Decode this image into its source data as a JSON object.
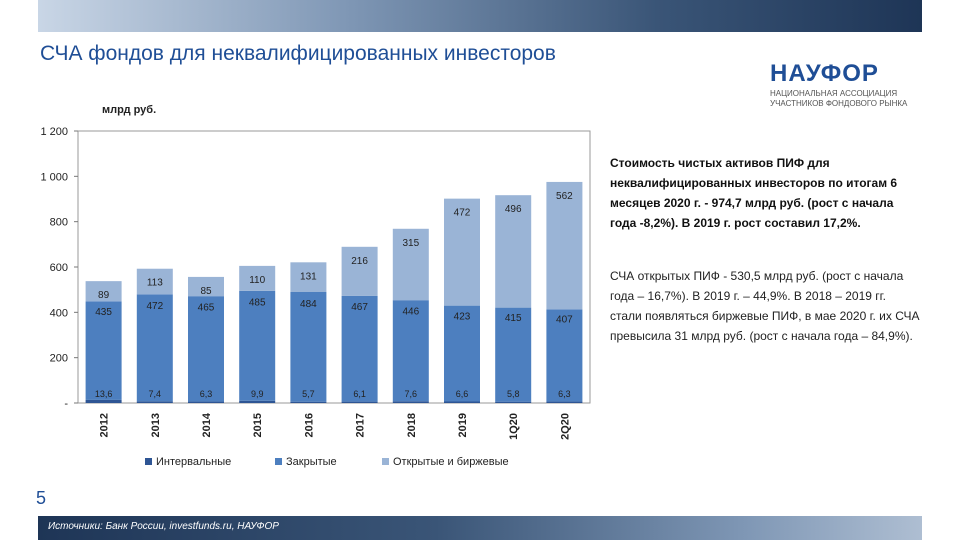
{
  "title": "СЧА фондов для неквалифицированных инвесторов",
  "logo": {
    "name": "НАУФОР",
    "line1": "НАЦИОНАЛЬНАЯ АССОЦИАЦИЯ",
    "line2": "УЧАСТНИКОВ ФОНДОВОГО РЫНКА"
  },
  "note_bold": "Стоимость чистых активов ПИФ для неквалифицированных инвесторов по итогам 6 месяцев 2020 г. - 974,7 млрд руб. (рост с начала года -8,2%). В 2019 г. рост составил 17,2%.",
  "note_regular": "СЧА открытых ПИФ - 530,5 млрд руб. (рост с начала года – 16,7%). В 2019 г. – 44,9%. В 2018 – 2019 гг. стали появляться биржевые ПИФ, в мае 2020 г. их СЧА превысила 31 млрд руб. (рост с начала года – 84,9%).",
  "page_number": "5",
  "source": "Источники: Банк России, investfunds.ru, НАУФОР",
  "colors": {
    "interval": "#2e5594",
    "closed": "#4d7fbf",
    "open": "#9ab4d6",
    "title": "#1f4e96"
  },
  "chart_data": {
    "type": "bar",
    "stacked": true,
    "ylabel": "млрд руб.",
    "categories": [
      "2012",
      "2013",
      "2014",
      "2015",
      "2016",
      "2017",
      "2018",
      "2019",
      "1Q20",
      "2Q20"
    ],
    "series": [
      {
        "name": "Интервальные",
        "values": [
          13.6,
          7.4,
          6.3,
          9.9,
          5.7,
          6.1,
          7.6,
          6.6,
          5.8,
          6.3
        ],
        "labels": [
          "13,6",
          "7,4",
          "6,3",
          "9,9",
          "5,7",
          "6,1",
          "7,6",
          "6,6",
          "5,8",
          "6,3"
        ]
      },
      {
        "name": "Закрытые",
        "values": [
          435,
          472,
          465,
          485,
          484,
          467,
          446,
          423,
          415,
          407
        ],
        "labels": [
          "435",
          "472",
          "465",
          "485",
          "484",
          "467",
          "446",
          "423",
          "415",
          "407"
        ]
      },
      {
        "name": "Открытые и биржевые",
        "values": [
          89,
          113,
          85,
          110,
          131,
          216,
          315,
          472,
          496,
          562
        ],
        "labels": [
          "89",
          "113",
          "85",
          "110",
          "131",
          "216",
          "315",
          "472",
          "496",
          "562"
        ]
      }
    ],
    "ylim": [
      0,
      1200
    ],
    "yticks": [
      0,
      200,
      400,
      600,
      800,
      1000,
      1200
    ],
    "ytick_labels": [
      "-",
      "200",
      "400",
      "600",
      "800",
      "1 000",
      "1 200"
    ],
    "grid": false,
    "legend_position": "bottom"
  }
}
